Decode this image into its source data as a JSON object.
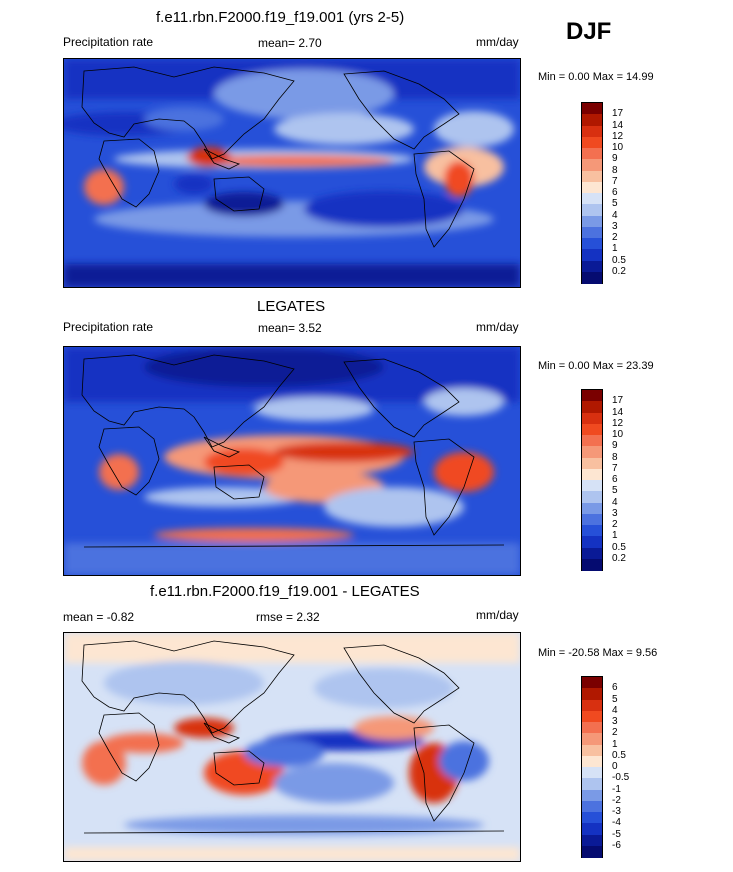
{
  "season_label": "DJF",
  "panels": [
    {
      "title": "f.e11.rbn.F2000.f19_f19.001 (yrs 2-5)",
      "left_label": "Precipitation rate",
      "center_label": "mean=   2.70",
      "units": "mm/day",
      "minmax": "Min =   0.00 Max =  14.99"
    },
    {
      "title": "LEGATES",
      "left_label": "Precipitation rate",
      "center_label": "mean=   3.52",
      "units": "mm/day",
      "minmax": "Min =   0.00 Max =  23.39"
    },
    {
      "title": "f.e11.rbn.F2000.f19_f19.001 - LEGATES",
      "left_label": "mean =  -0.82",
      "center_label": "rmse =   2.32",
      "units": "mm/day",
      "minmax": "Min = -20.58 Max =   9.56"
    }
  ],
  "chart_data": [
    {
      "type": "heatmap",
      "title": "f.e11.rbn.F2000.f19_f19.001 (yrs 2-5)",
      "variable": "Precipitation rate",
      "mean": 2.7,
      "min": 0.0,
      "max": 14.99,
      "units": "mm/day",
      "levels": [
        "17",
        "14",
        "12",
        "10",
        "9",
        "8",
        "7",
        "6",
        "5",
        "4",
        "3",
        "2",
        "1",
        "0.5",
        "0.2"
      ],
      "colors": [
        "#7a0000",
        "#b01800",
        "#d83010",
        "#f04a20",
        "#f37050",
        "#f59878",
        "#f8c0a0",
        "#fde6d2",
        "#d6e2f6",
        "#aec4ef",
        "#7a9ae6",
        "#4c72df",
        "#2650d8",
        "#1432c2",
        "#0a1a96",
        "#050b70"
      ]
    },
    {
      "type": "heatmap",
      "title": "LEGATES",
      "variable": "Precipitation rate",
      "mean": 3.52,
      "min": 0.0,
      "max": 23.39,
      "units": "mm/day",
      "levels": [
        "17",
        "14",
        "12",
        "10",
        "9",
        "8",
        "7",
        "6",
        "5",
        "4",
        "3",
        "2",
        "1",
        "0.5",
        "0.2"
      ],
      "colors": [
        "#7a0000",
        "#b01800",
        "#d83010",
        "#f04a20",
        "#f37050",
        "#f59878",
        "#f8c0a0",
        "#fde6d2",
        "#d6e2f6",
        "#aec4ef",
        "#7a9ae6",
        "#4c72df",
        "#2650d8",
        "#1432c2",
        "#0a1a96",
        "#050b70"
      ]
    },
    {
      "type": "heatmap",
      "title": "f.e11.rbn.F2000.f19_f19.001 - LEGATES",
      "mean": -0.82,
      "rmse": 2.32,
      "min": -20.58,
      "max": 9.56,
      "units": "mm/day",
      "levels": [
        "6",
        "5",
        "4",
        "3",
        "2",
        "1",
        "0.5",
        "0",
        "-0.5",
        "-1",
        "-2",
        "-3",
        "-4",
        "-5",
        "-6"
      ],
      "colors": [
        "#7a0000",
        "#b01800",
        "#d83010",
        "#f04a20",
        "#f37050",
        "#f59878",
        "#f8c0a0",
        "#fde6d2",
        "#d6e2f6",
        "#aec4ef",
        "#7a9ae6",
        "#4c72df",
        "#2650d8",
        "#1432c2",
        "#0a1a96",
        "#050b70"
      ]
    }
  ]
}
